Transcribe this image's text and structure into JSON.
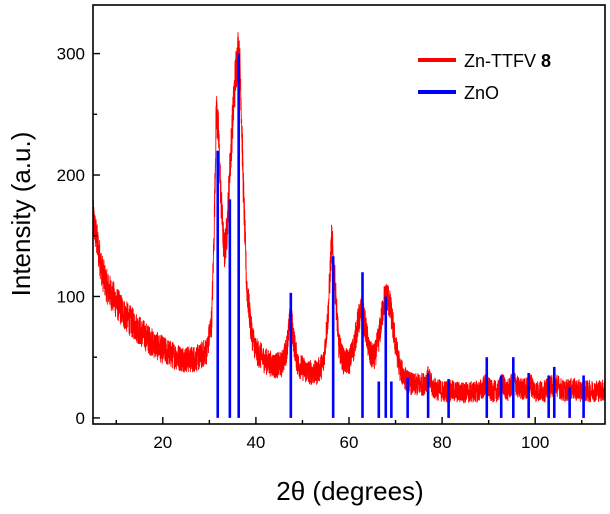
{
  "chart_data": {
    "type": "line",
    "xlabel": "2θ (degrees)",
    "ylabel": "Intensity (a.u.)",
    "xlim": [
      5,
      115
    ],
    "ylim": [
      -5,
      340
    ],
    "x_ticks": [
      20,
      40,
      60,
      80,
      100
    ],
    "y_ticks": [
      0,
      100,
      200,
      300
    ],
    "legend_position": "top-right",
    "series": [
      {
        "name": "Zn-TTFV",
        "name_suffix": "8",
        "color": "#ff0000",
        "style": "noisy-line",
        "profile": [
          [
            5,
            165
          ],
          [
            6,
            142
          ],
          [
            7,
            120
          ],
          [
            8,
            108
          ],
          [
            10,
            95
          ],
          [
            12,
            84
          ],
          [
            14,
            76
          ],
          [
            16,
            68
          ],
          [
            18,
            61
          ],
          [
            20,
            56
          ],
          [
            22,
            52
          ],
          [
            24,
            49
          ],
          [
            26,
            48
          ],
          [
            28,
            50
          ],
          [
            29.5,
            56
          ],
          [
            30.5,
            80
          ],
          [
            31,
            150
          ],
          [
            31.5,
            255
          ],
          [
            32,
            230
          ],
          [
            32.5,
            180
          ],
          [
            33.2,
            135
          ],
          [
            33.8,
            155
          ],
          [
            34.4,
            205
          ],
          [
            35,
            245
          ],
          [
            35.6,
            282
          ],
          [
            36.2,
            303
          ],
          [
            36.7,
            280
          ],
          [
            37.3,
            190
          ],
          [
            38,
            110
          ],
          [
            39,
            72
          ],
          [
            40,
            55
          ],
          [
            42,
            47
          ],
          [
            44,
            43
          ],
          [
            45.5,
            44
          ],
          [
            46.5,
            55
          ],
          [
            47.5,
            85
          ],
          [
            48.2,
            62
          ],
          [
            49,
            44
          ],
          [
            51,
            38
          ],
          [
            53,
            37
          ],
          [
            54.5,
            45
          ],
          [
            55.5,
            85
          ],
          [
            56.3,
            148
          ],
          [
            57,
            110
          ],
          [
            57.8,
            60
          ],
          [
            58.8,
            47
          ],
          [
            60,
            46
          ],
          [
            61,
            58
          ],
          [
            62,
            80
          ],
          [
            62.8,
            88
          ],
          [
            63.5,
            75
          ],
          [
            64.5,
            52
          ],
          [
            65.5,
            50
          ],
          [
            66.5,
            68
          ],
          [
            67.5,
            96
          ],
          [
            68.3,
            100
          ],
          [
            69,
            88
          ],
          [
            70,
            60
          ],
          [
            71,
            40
          ],
          [
            72.5,
            30
          ],
          [
            74,
            27
          ],
          [
            76,
            28
          ],
          [
            77,
            33
          ],
          [
            78,
            25
          ],
          [
            80,
            22
          ],
          [
            82,
            22
          ],
          [
            84,
            21
          ],
          [
            86,
            21
          ],
          [
            88,
            22
          ],
          [
            89.5,
            28
          ],
          [
            90.5,
            22
          ],
          [
            92,
            22
          ],
          [
            93,
            28
          ],
          [
            94,
            22
          ],
          [
            95.5,
            30
          ],
          [
            96.5,
            24
          ],
          [
            98,
            24
          ],
          [
            99,
            28
          ],
          [
            100,
            22
          ],
          [
            102,
            22
          ],
          [
            103.5,
            26
          ],
          [
            104.5,
            28
          ],
          [
            106,
            22
          ],
          [
            108,
            24
          ],
          [
            110,
            22
          ],
          [
            112,
            22
          ],
          [
            115,
            23
          ]
        ]
      },
      {
        "name": "ZnO",
        "color": "#0000ff",
        "style": "stick",
        "x": [
          31.8,
          34.4,
          36.3,
          47.5,
          56.6,
          62.9,
          66.4,
          67.9,
          69.1,
          72.6,
          77.0,
          81.4,
          89.6,
          92.7,
          95.3,
          98.6,
          102.9,
          104.1,
          107.4,
          110.4
        ],
        "y": [
          220,
          180,
          300,
          103,
          133,
          120,
          30,
          100,
          30,
          33,
          37,
          32,
          50,
          35,
          50,
          37,
          35,
          42,
          25,
          35
        ]
      }
    ]
  }
}
